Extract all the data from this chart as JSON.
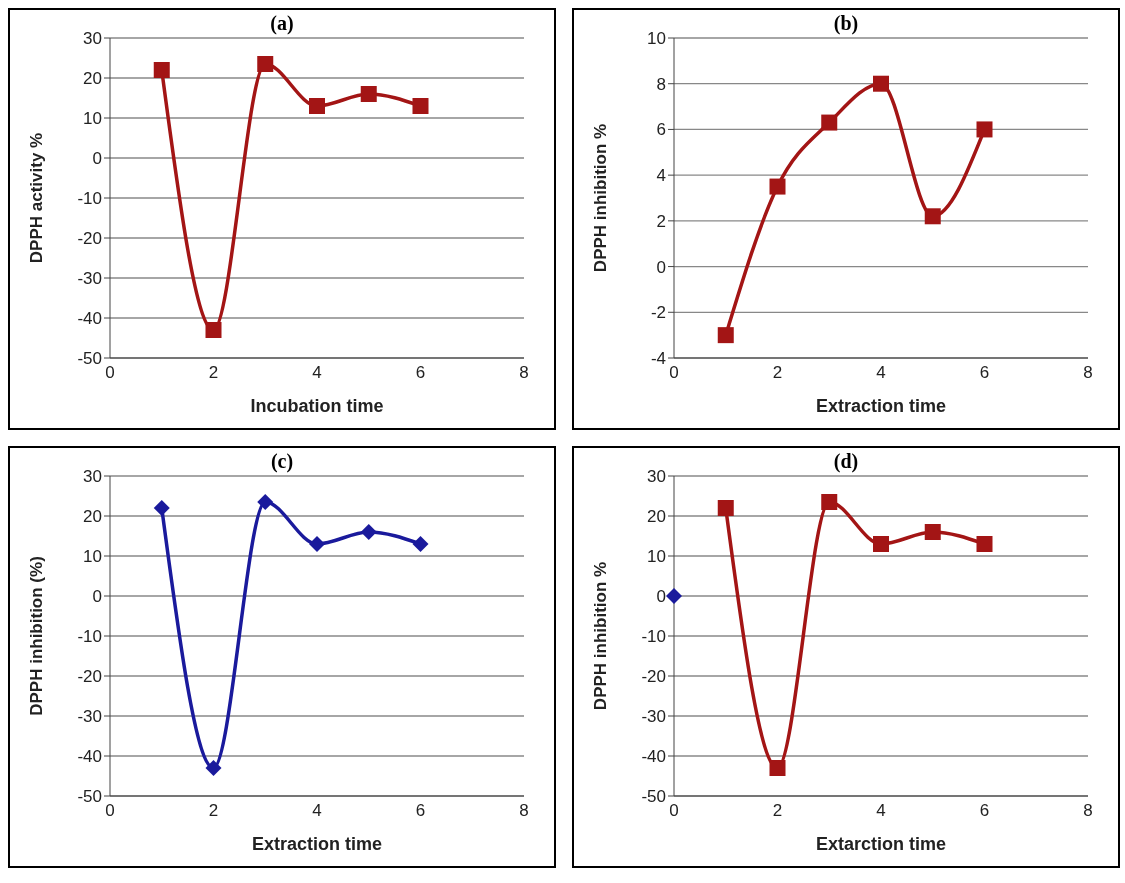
{
  "chart_data": [
    {
      "type": "line",
      "title": "(a)",
      "xlabel": "Incubation time",
      "ylabel": "DPPH activity %",
      "xlim": [
        0,
        8
      ],
      "xticks": [
        0,
        2,
        4,
        6,
        8
      ],
      "ylim": [
        -50,
        30
      ],
      "yticks": [
        -50,
        -40,
        -30,
        -20,
        -10,
        0,
        10,
        20,
        30
      ],
      "grid": "y",
      "series": [
        {
          "color": "#a31515",
          "marker": "square",
          "x": [
            1,
            2,
            3,
            4,
            5,
            6
          ],
          "values": [
            22,
            -43,
            23.5,
            13,
            16,
            13
          ]
        }
      ]
    },
    {
      "type": "line",
      "title": "(b)",
      "xlabel": "Extraction time",
      "ylabel": "DPPH inhibition %",
      "xlim": [
        0,
        8
      ],
      "xticks": [
        0,
        2,
        4,
        6,
        8
      ],
      "ylim": [
        -4,
        10
      ],
      "yticks": [
        -4,
        -2,
        0,
        2,
        4,
        6,
        8,
        10
      ],
      "grid": "y",
      "series": [
        {
          "color": "#a31515",
          "marker": "square",
          "x": [
            1,
            2,
            3,
            4,
            5,
            6
          ],
          "values": [
            -3,
            3.5,
            6.3,
            8,
            2.2,
            6
          ]
        }
      ]
    },
    {
      "type": "line",
      "title": "(c)",
      "xlabel": "Extraction time",
      "ylabel": "DPPH inhibition (%)",
      "xlim": [
        0,
        8
      ],
      "xticks": [
        0,
        2,
        4,
        6,
        8
      ],
      "ylim": [
        -50,
        30
      ],
      "yticks": [
        -50,
        -40,
        -30,
        -20,
        -10,
        0,
        10,
        20,
        30
      ],
      "grid": "y",
      "series": [
        {
          "color": "#1a1a9c",
          "marker": "diamond",
          "x": [
            1,
            2,
            3,
            4,
            5,
            6
          ],
          "values": [
            22,
            -43,
            23.5,
            13,
            16,
            13
          ]
        }
      ]
    },
    {
      "type": "line",
      "title": "(d)",
      "xlabel": "Extarction time",
      "ylabel": "DPPH inhibition %",
      "xlim": [
        0,
        8
      ],
      "xticks": [
        0,
        2,
        4,
        6,
        8
      ],
      "ylim": [
        -50,
        30
      ],
      "yticks": [
        -50,
        -40,
        -30,
        -20,
        -10,
        0,
        10,
        20,
        30
      ],
      "grid": "y",
      "series": [
        {
          "type": "scatter",
          "color": "#1a1a9c",
          "marker": "diamond",
          "x": [
            0
          ],
          "values": [
            0
          ]
        },
        {
          "color": "#a31515",
          "marker": "square",
          "x": [
            1,
            2,
            3,
            4,
            5,
            6
          ],
          "values": [
            22,
            -43,
            23.5,
            13,
            16,
            13
          ]
        }
      ]
    }
  ]
}
